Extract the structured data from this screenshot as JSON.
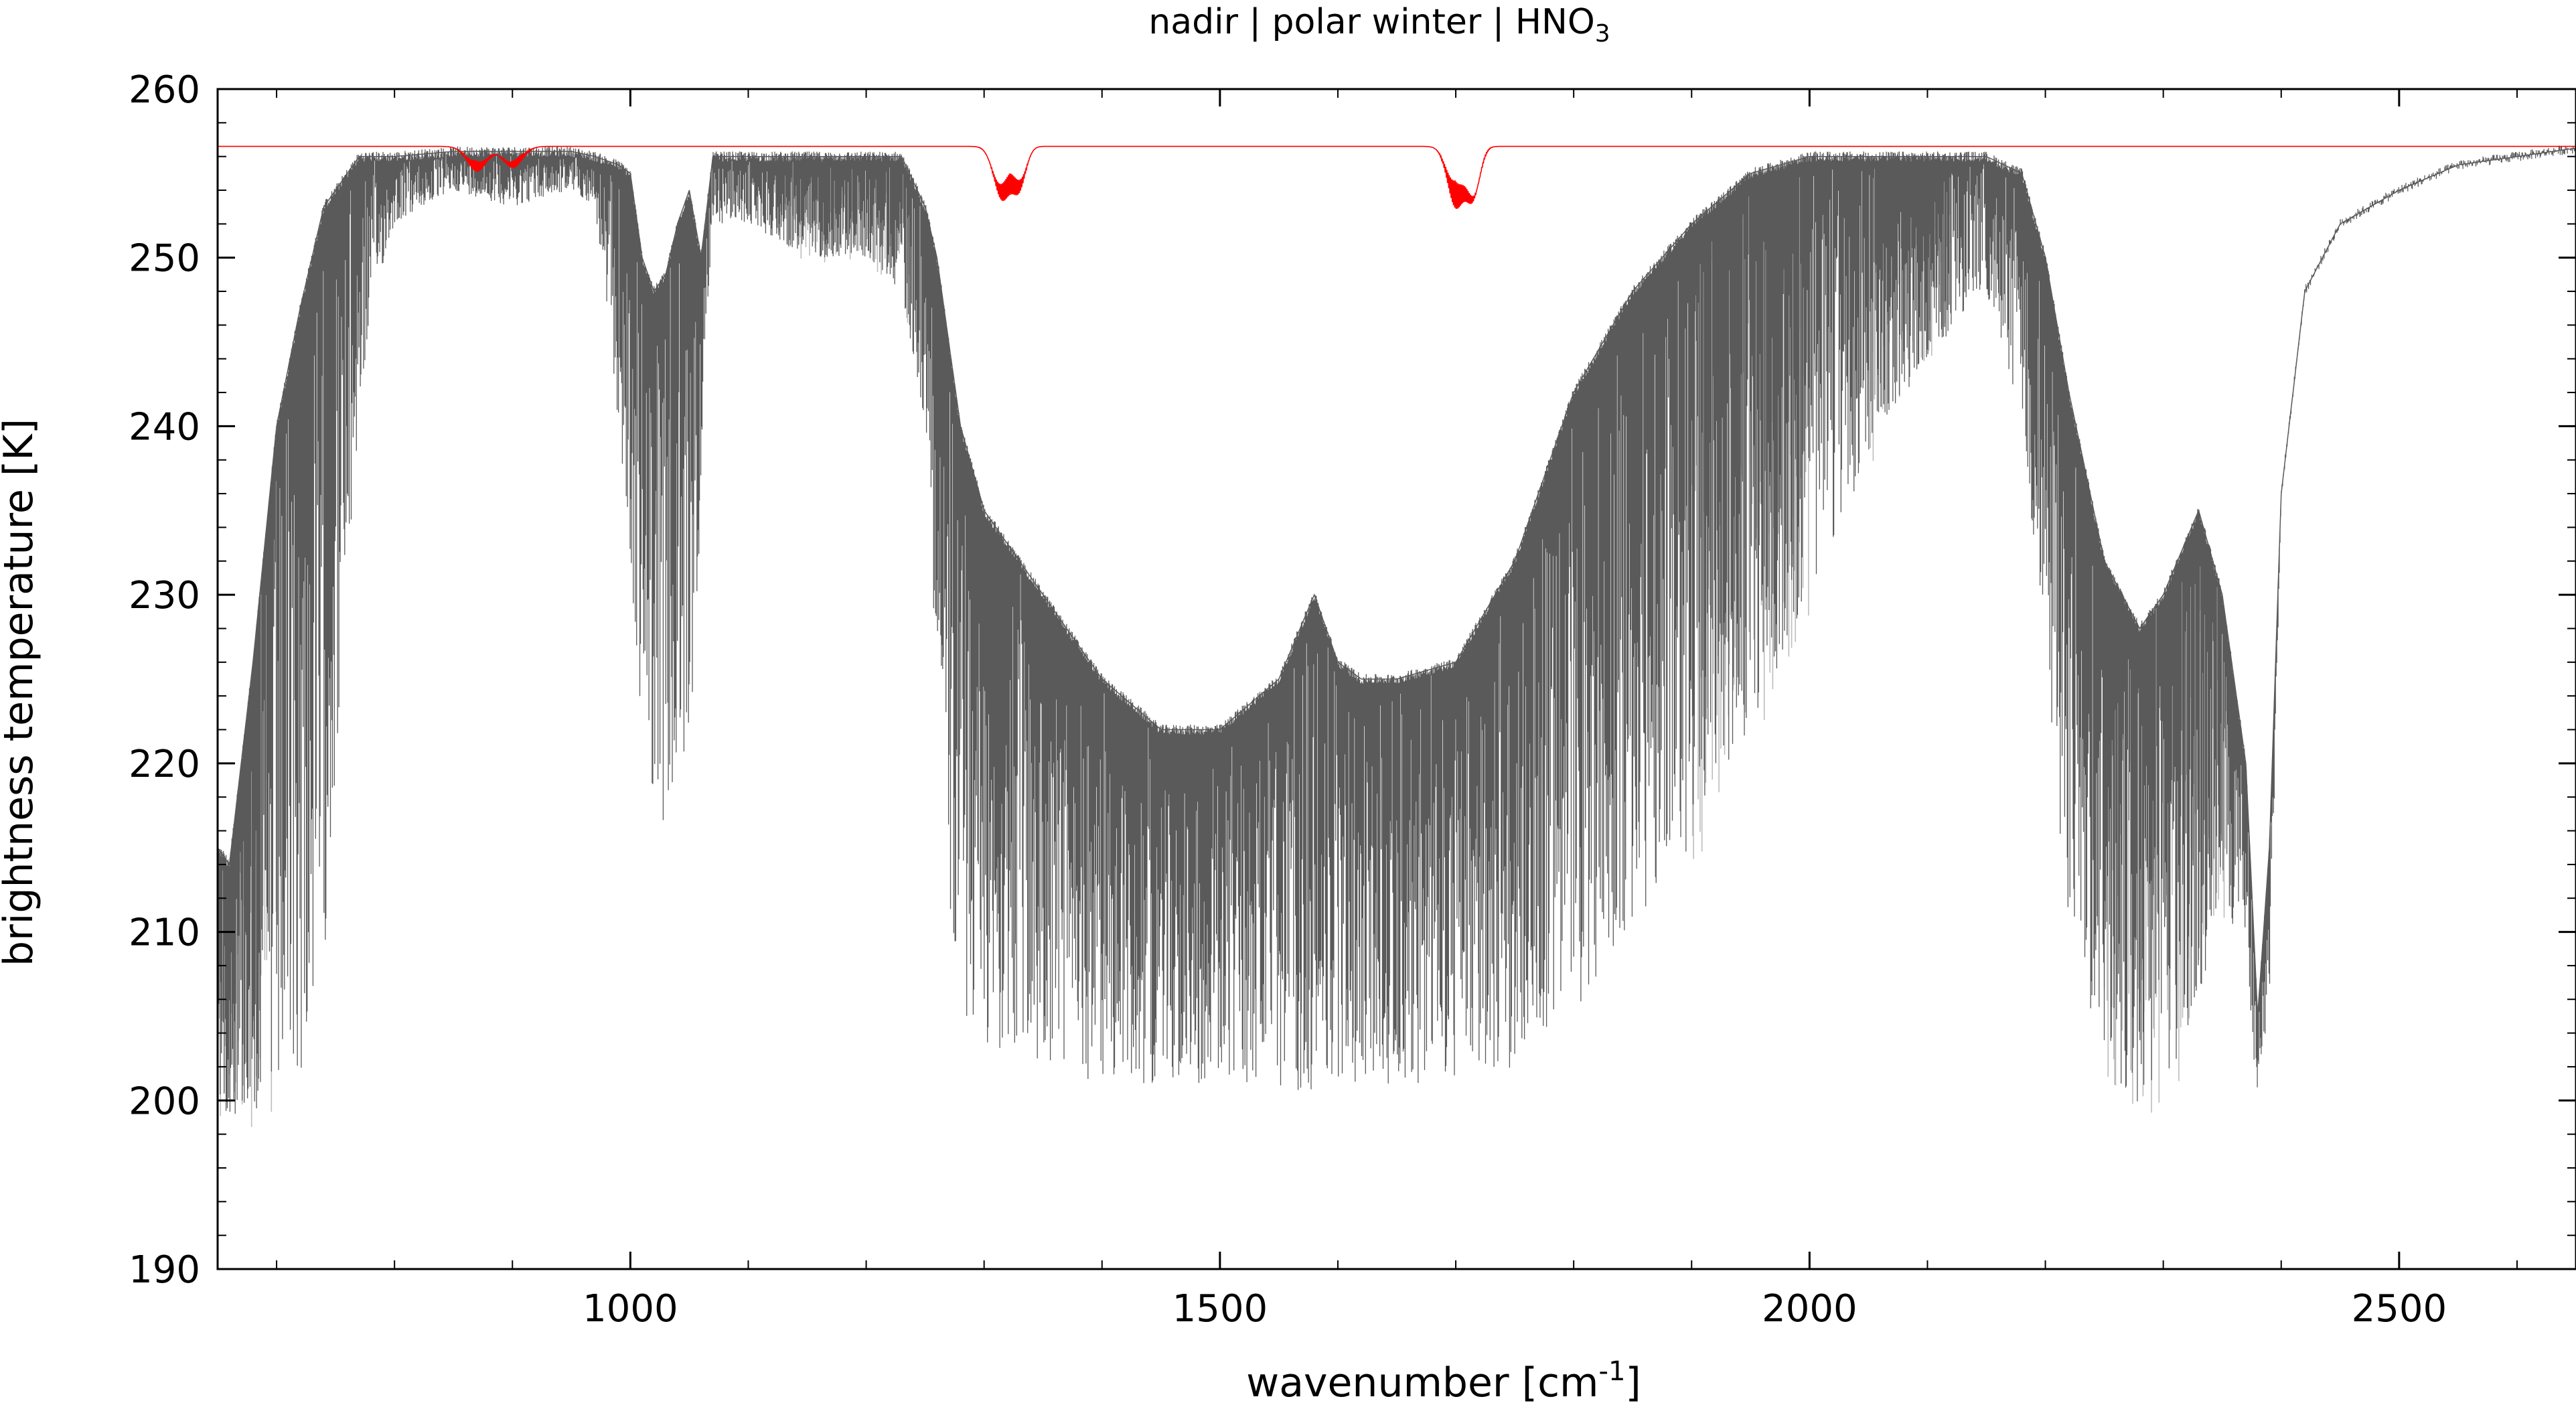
{
  "chart_data": {
    "type": "line",
    "title": "nadir | polar winter | HNO",
    "title_subscript": "3",
    "xlabel": "wavenumber [cm",
    "xlabel_superscript": "-1",
    "xlabel_suffix": "]",
    "ylabel": "brightness temperature [K]",
    "xlim": [
      650,
      2650
    ],
    "ylim": [
      190,
      260
    ],
    "xticks": [
      1000,
      1500,
      2000,
      2500
    ],
    "xtick_labels": [
      "1000",
      "1500",
      "2000",
      "2500"
    ],
    "yticks": [
      190,
      200,
      210,
      220,
      230,
      240,
      250,
      260
    ],
    "ytick_labels": [
      "190",
      "200",
      "210",
      "220",
      "230",
      "240",
      "250",
      "260"
    ],
    "grid": false,
    "legend": "none",
    "colors": {
      "spectrum_dark": "#5a5a5a",
      "spectrum_light": "#bdbdbd",
      "hno3": "#ff0000"
    },
    "series": [
      {
        "style": "dark-gray-dense",
        "envelope_x": [
          650,
          660,
          680,
          700,
          720,
          740,
          760,
          770,
          780,
          800,
          850,
          900,
          950,
          970,
          990,
          1000,
          1010,
          1020,
          1030,
          1040,
          1050,
          1060,
          1070,
          1100,
          1150,
          1200,
          1230,
          1250,
          1260,
          1270,
          1280,
          1300,
          1350,
          1400,
          1450,
          1500,
          1550,
          1580,
          1600,
          1620,
          1650,
          1700,
          1750,
          1800,
          1850,
          1900,
          1950,
          2000,
          2050,
          2100,
          2150,
          2180,
          2200,
          2220,
          2250,
          2280,
          2300,
          2330,
          2350,
          2370,
          2380,
          2390,
          2400,
          2420,
          2450,
          2500,
          2550,
          2600,
          2650
        ],
        "envelope_top": [
          215,
          214,
          226,
          240,
          247,
          253,
          255,
          256,
          256,
          256,
          256.3,
          256.3,
          256.3,
          256,
          255.5,
          255,
          250,
          248,
          249,
          252,
          254,
          250,
          256,
          256,
          256,
          256,
          256,
          253,
          250,
          245,
          240,
          235,
          230,
          225,
          222,
          222,
          225,
          230,
          226,
          225,
          225,
          226,
          232,
          242,
          248,
          252,
          255,
          256,
          256,
          256,
          256,
          255,
          250,
          242,
          232,
          228,
          230,
          235,
          230,
          220,
          205,
          215,
          236,
          248,
          252,
          254,
          255.5,
          256,
          256.5
        ],
        "envelope_bottom": [
          200,
          199,
          199,
          199,
          201,
          208,
          230,
          240,
          247,
          252,
          254,
          253,
          254,
          253,
          240,
          230,
          222,
          218,
          216,
          217,
          220,
          235,
          252,
          252,
          250,
          250,
          248,
          240,
          225,
          212,
          205,
          203,
          202,
          201,
          201,
          201,
          200.5,
          200.5,
          201,
          201,
          201,
          201,
          202,
          205,
          210,
          215,
          222,
          230,
          238,
          244,
          248,
          240,
          225,
          210,
          202,
          199.5,
          199.5,
          205,
          212,
          208,
          200,
          205,
          236,
          248,
          252,
          254,
          255.5,
          256,
          256.5
        ]
      },
      {
        "style": "light-gray-lines",
        "regions": [
          [
            650,
            700
          ],
          [
            1120,
            1240
          ],
          [
            1900,
            2000
          ],
          [
            2050,
            2120
          ],
          [
            2250,
            2360
          ]
        ]
      },
      {
        "name": "HNO3",
        "style": "red",
        "baseline": 256.6,
        "band_centers": [
          870,
          900,
          1315,
          1330,
          1700,
          1715
        ],
        "band_depths": [
          1.5,
          1.3,
          3.2,
          2.5,
          3.6,
          3.2
        ],
        "band_widths": [
          12,
          12,
          10,
          8,
          10,
          8
        ]
      }
    ]
  }
}
